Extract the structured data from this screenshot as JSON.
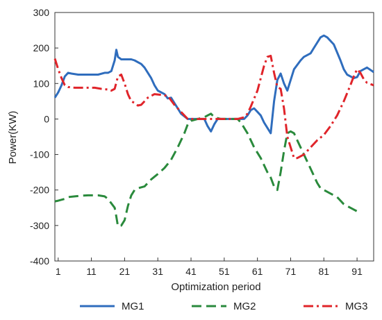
{
  "chart_data": {
    "type": "line",
    "xlabel": "Optimization period",
    "ylabel": "Power(KW)",
    "xlim": [
      0,
      96
    ],
    "ylim": [
      -400,
      300
    ],
    "xticks": [
      1,
      11,
      21,
      31,
      41,
      51,
      61,
      71,
      81,
      91
    ],
    "yticks": [
      -400,
      -300,
      -200,
      -100,
      0,
      100,
      200,
      300
    ],
    "grid": false,
    "legend_position": "bottom",
    "series": [
      {
        "name": "MG1",
        "color": "#2f6dbd",
        "dash": "solid",
        "points": [
          [
            0,
            60
          ],
          [
            1,
            75
          ],
          [
            2,
            95
          ],
          [
            3,
            120
          ],
          [
            4,
            130
          ],
          [
            5,
            128
          ],
          [
            7,
            125
          ],
          [
            9,
            125
          ],
          [
            11,
            125
          ],
          [
            13,
            125
          ],
          [
            15,
            130
          ],
          [
            16,
            130
          ],
          [
            17,
            135
          ],
          [
            18,
            165
          ],
          [
            18.5,
            195
          ],
          [
            19,
            175
          ],
          [
            20,
            168
          ],
          [
            21,
            168
          ],
          [
            23,
            168
          ],
          [
            24,
            165
          ],
          [
            26,
            155
          ],
          [
            27,
            145
          ],
          [
            28,
            130
          ],
          [
            29,
            115
          ],
          [
            30,
            95
          ],
          [
            31,
            80
          ],
          [
            33,
            70
          ],
          [
            34,
            58
          ],
          [
            35,
            60
          ],
          [
            36,
            45
          ],
          [
            37,
            30
          ],
          [
            38,
            15
          ],
          [
            40,
            0
          ],
          [
            44,
            0
          ],
          [
            45,
            0
          ],
          [
            46,
            -20
          ],
          [
            47,
            -35
          ],
          [
            48,
            -15
          ],
          [
            49,
            0
          ],
          [
            52,
            0
          ],
          [
            55,
            0
          ],
          [
            57,
            0
          ],
          [
            58,
            10
          ],
          [
            59,
            25
          ],
          [
            60,
            30
          ],
          [
            61,
            20
          ],
          [
            62,
            10
          ],
          [
            63,
            -10
          ],
          [
            65,
            -40
          ],
          [
            66,
            50
          ],
          [
            67,
            110
          ],
          [
            68,
            128
          ],
          [
            69,
            100
          ],
          [
            70,
            80
          ],
          [
            71,
            110
          ],
          [
            72,
            140
          ],
          [
            74,
            165
          ],
          [
            75,
            175
          ],
          [
            77,
            185
          ],
          [
            78,
            200
          ],
          [
            80,
            230
          ],
          [
            81,
            235
          ],
          [
            82,
            230
          ],
          [
            84,
            210
          ],
          [
            86,
            165
          ],
          [
            87,
            140
          ],
          [
            88,
            125
          ],
          [
            90,
            115
          ],
          [
            91,
            118
          ],
          [
            92,
            135
          ],
          [
            93,
            140
          ],
          [
            94,
            145
          ],
          [
            96,
            132
          ]
        ]
      },
      {
        "name": "MG2",
        "color": "#2a8a3c",
        "dash": "long",
        "points": [
          [
            0,
            -232
          ],
          [
            1,
            -230
          ],
          [
            3,
            -225
          ],
          [
            4,
            -220
          ],
          [
            6,
            -218
          ],
          [
            8,
            -216
          ],
          [
            10,
            -215
          ],
          [
            13,
            -215
          ],
          [
            15,
            -218
          ],
          [
            16,
            -225
          ],
          [
            18,
            -250
          ],
          [
            18.5,
            -275
          ],
          [
            19,
            -302
          ],
          [
            20,
            -300
          ],
          [
            21,
            -285
          ],
          [
            22,
            -245
          ],
          [
            23,
            -215
          ],
          [
            24,
            -200
          ],
          [
            25,
            -195
          ],
          [
            27,
            -190
          ],
          [
            29,
            -170
          ],
          [
            31,
            -155
          ],
          [
            33,
            -138
          ],
          [
            35,
            -115
          ],
          [
            37,
            -80
          ],
          [
            39,
            -40
          ],
          [
            40,
            -15
          ],
          [
            41,
            -5
          ],
          [
            43,
            0
          ],
          [
            45,
            5
          ],
          [
            46,
            10
          ],
          [
            47,
            15
          ],
          [
            48,
            5
          ],
          [
            50,
            0
          ],
          [
            53,
            0
          ],
          [
            55,
            0
          ],
          [
            56,
            -10
          ],
          [
            58,
            -40
          ],
          [
            60,
            -80
          ],
          [
            62,
            -110
          ],
          [
            64,
            -150
          ],
          [
            65,
            -165
          ],
          [
            66,
            -190
          ],
          [
            67,
            -200
          ],
          [
            68,
            -150
          ],
          [
            69,
            -90
          ],
          [
            70,
            -40
          ],
          [
            71,
            -35
          ],
          [
            72,
            -40
          ],
          [
            73,
            -60
          ],
          [
            75,
            -100
          ],
          [
            77,
            -140
          ],
          [
            79,
            -180
          ],
          [
            80,
            -195
          ],
          [
            81,
            -200
          ],
          [
            83,
            -210
          ],
          [
            85,
            -220
          ],
          [
            87,
            -240
          ],
          [
            89,
            -250
          ],
          [
            91,
            -260
          ],
          [
            92,
            -265
          ]
        ]
      },
      {
        "name": "MG3",
        "color": "#e0242a",
        "dash": "dashdot",
        "points": [
          [
            0,
            170
          ],
          [
            1,
            140
          ],
          [
            2,
            115
          ],
          [
            3,
            95
          ],
          [
            4,
            90
          ],
          [
            6,
            88
          ],
          [
            8,
            88
          ],
          [
            10,
            88
          ],
          [
            12,
            88
          ],
          [
            14,
            85
          ],
          [
            16,
            83
          ],
          [
            17,
            80
          ],
          [
            18,
            85
          ],
          [
            19,
            120
          ],
          [
            20,
            125
          ],
          [
            21,
            100
          ],
          [
            22,
            70
          ],
          [
            23,
            50
          ],
          [
            24,
            45
          ],
          [
            25,
            38
          ],
          [
            26,
            40
          ],
          [
            27,
            50
          ],
          [
            28,
            60
          ],
          [
            30,
            70
          ],
          [
            32,
            68
          ],
          [
            34,
            65
          ],
          [
            36,
            40
          ],
          [
            38,
            20
          ],
          [
            40,
            0
          ],
          [
            43,
            0
          ],
          [
            45,
            0
          ],
          [
            47,
            0
          ],
          [
            48,
            0
          ],
          [
            49,
            0
          ],
          [
            52,
            0
          ],
          [
            55,
            0
          ],
          [
            57,
            5
          ],
          [
            58,
            15
          ],
          [
            59,
            35
          ],
          [
            61,
            80
          ],
          [
            63,
            150
          ],
          [
            64,
            175
          ],
          [
            65,
            178
          ],
          [
            66,
            130
          ],
          [
            67,
            90
          ],
          [
            68,
            85
          ],
          [
            69,
            30
          ],
          [
            70,
            -50
          ],
          [
            71,
            -80
          ],
          [
            72,
            -110
          ],
          [
            73,
            -110
          ],
          [
            75,
            -100
          ],
          [
            77,
            -80
          ],
          [
            79,
            -60
          ],
          [
            81,
            -45
          ],
          [
            83,
            -20
          ],
          [
            85,
            10
          ],
          [
            87,
            50
          ],
          [
            89,
            95
          ],
          [
            90,
            120
          ],
          [
            91,
            140
          ],
          [
            92,
            130
          ],
          [
            93,
            112
          ],
          [
            94,
            102
          ],
          [
            96,
            95
          ]
        ]
      }
    ]
  }
}
